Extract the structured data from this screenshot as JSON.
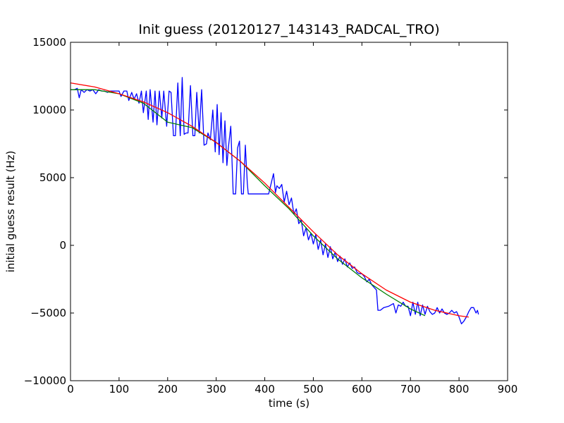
{
  "chart_data": {
    "type": "line",
    "title": "Init guess (20120127_143143_RADCAL_TRO)",
    "xlabel": "time (s)",
    "ylabel": "initial guess result (Hz)",
    "xlim": [
      0,
      900
    ],
    "ylim": [
      -10000,
      15000
    ],
    "xticks": [
      0,
      100,
      200,
      300,
      400,
      500,
      600,
      700,
      800,
      900
    ],
    "yticks": [
      -10000,
      -5000,
      0,
      5000,
      10000,
      15000
    ],
    "xtick_labels": [
      "0",
      "100",
      "200",
      "300",
      "400",
      "500",
      "600",
      "700",
      "800",
      "900"
    ],
    "ytick_labels": [
      "−10000",
      "−5000",
      "0",
      "5000",
      "10000",
      "15000"
    ],
    "grid": false,
    "legend": "none",
    "series": [
      {
        "color": "#0000ff",
        "x": [
          0,
          8,
          14,
          18,
          22,
          28,
          34,
          40,
          46,
          52,
          58,
          64,
          70,
          76,
          82,
          88,
          94,
          100,
          104,
          110,
          116,
          120,
          126,
          131,
          136,
          141,
          146,
          150,
          156,
          160,
          164,
          170,
          174,
          178,
          183,
          188,
          192,
          198,
          203,
          207,
          212,
          216,
          221,
          226,
          230,
          234,
          238,
          242,
          247,
          252,
          256,
          260,
          265,
          270,
          275,
          280,
          283,
          288,
          293,
          298,
          302,
          306,
          310,
          314,
          318,
          322,
          325,
          330,
          335,
          340,
          344,
          348,
          352,
          356,
          360,
          364,
          366,
          372,
          380,
          390,
          400,
          408,
          418,
          422,
          425,
          430,
          435,
          440,
          445,
          450,
          455,
          460,
          465,
          470,
          475,
          480,
          485,
          490,
          495,
          500,
          505,
          510,
          515,
          520,
          525,
          530,
          535,
          540,
          545,
          550,
          555,
          560,
          565,
          570,
          575,
          580,
          585,
          590,
          595,
          600,
          605,
          610,
          615,
          620,
          625,
          630,
          633,
          638,
          645,
          655,
          665,
          670,
          675,
          680,
          685,
          690,
          695,
          700,
          705,
          710,
          715,
          720,
          725,
          730,
          735,
          740,
          745,
          750,
          755,
          760,
          765,
          770,
          775,
          780,
          785,
          790,
          795,
          800,
          805,
          810,
          815,
          820,
          825,
          830,
          835,
          838,
          840
        ],
        "y": [
          11500,
          11500,
          11600,
          10900,
          11500,
          11300,
          11500,
          11400,
          11500,
          11200,
          11500,
          11400,
          11400,
          11300,
          11400,
          11400,
          11400,
          11400,
          11000,
          11400,
          11400,
          10700,
          11300,
          10800,
          11200,
          10500,
          11400,
          9800,
          11400,
          9300,
          11500,
          9100,
          11400,
          8900,
          11400,
          9400,
          11400,
          8800,
          11400,
          11300,
          8100,
          8100,
          12000,
          8100,
          12400,
          8200,
          8300,
          8300,
          11800,
          8100,
          8100,
          11300,
          8300,
          11500,
          7400,
          7500,
          8300,
          7800,
          10000,
          6900,
          10400,
          6700,
          9800,
          6100,
          9200,
          5900,
          7200,
          8800,
          3800,
          3800,
          7200,
          7700,
          3800,
          3800,
          7400,
          4600,
          3800,
          3800,
          3800,
          3800,
          3800,
          3800,
          5300,
          3900,
          4400,
          4200,
          4500,
          3200,
          4000,
          3000,
          3500,
          2300,
          2700,
          1600,
          1900,
          700,
          1300,
          400,
          900,
          100,
          800,
          -300,
          400,
          -700,
          100,
          -900,
          -100,
          -1000,
          -500,
          -1200,
          -800,
          -1400,
          -1000,
          -1600,
          -1300,
          -1700,
          -1600,
          -2000,
          -2100,
          -2100,
          -2300,
          -2700,
          -2500,
          -2900,
          -3100,
          -3300,
          -4800,
          -4800,
          -4600,
          -4500,
          -4300,
          -5000,
          -4400,
          -4500,
          -4200,
          -4500,
          -4500,
          -5200,
          -4200,
          -5100,
          -4200,
          -5200,
          -4400,
          -5100,
          -4500,
          -4900,
          -5100,
          -5000,
          -4600,
          -5000,
          -4700,
          -5000,
          -5100,
          -5000,
          -4800,
          -5000,
          -4900,
          -5300,
          -5800,
          -5600,
          -5300,
          -4900,
          -4600,
          -4600,
          -5000,
          -4800,
          -5100
        ]
      },
      {
        "color": "#008000",
        "x": [
          0,
          50,
          100,
          150,
          200,
          250,
          300,
          350,
          400,
          450,
          500,
          550,
          600,
          650,
          700,
          730
        ],
        "y": [
          11500,
          11500,
          11200,
          10500,
          9100,
          8700,
          7600,
          6200,
          4400,
          2700,
          700,
          -1000,
          -2400,
          -3600,
          -4700,
          -5200
        ]
      },
      {
        "color": "#ff0000",
        "x": [
          0,
          50,
          100,
          150,
          200,
          250,
          300,
          350,
          400,
          450,
          500,
          550,
          600,
          650,
          700,
          750,
          800,
          820
        ],
        "y": [
          12000,
          11700,
          11200,
          10600,
          9800,
          8800,
          7600,
          6200,
          4600,
          2800,
          1000,
          -700,
          -2100,
          -3300,
          -4200,
          -4800,
          -5200,
          -5300
        ]
      }
    ]
  }
}
